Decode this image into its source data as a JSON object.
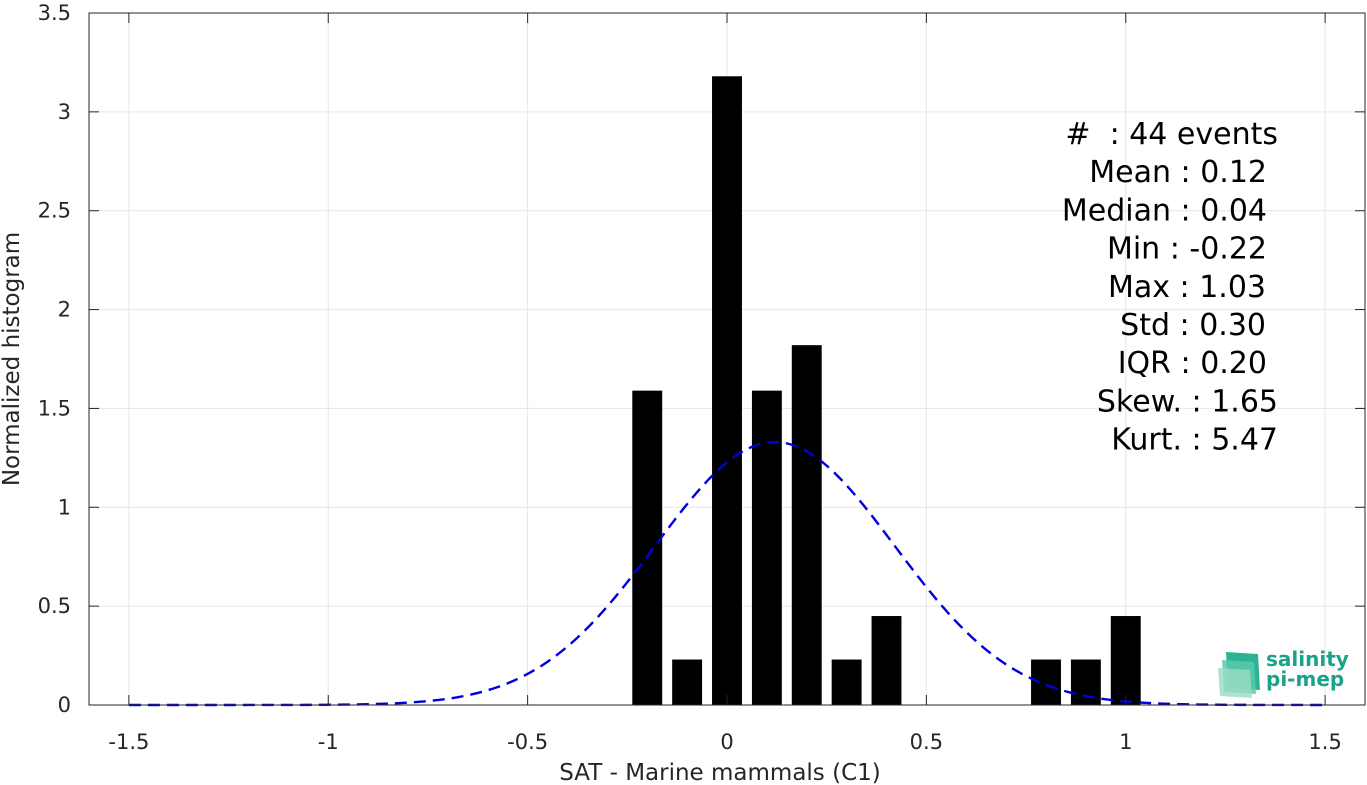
{
  "chart_data": {
    "type": "bar",
    "title": "",
    "xlabel": "SAT - Marine mammals (C1)",
    "ylabel": "Normalized histogram",
    "xlim": [
      -1.6,
      1.6
    ],
    "ylim": [
      0,
      3.5
    ],
    "grid": true,
    "x_ticks": [
      -1.5,
      -1,
      -0.5,
      0,
      0.5,
      1,
      1.5
    ],
    "x_tick_labels": [
      "-1.5",
      "-1",
      "-0.5",
      "0",
      "0.5",
      "1",
      "1.5"
    ],
    "y_ticks": [
      0,
      0.5,
      1,
      1.5,
      2,
      2.5,
      3,
      3.5
    ],
    "y_tick_labels": [
      "0",
      "0.5",
      "1",
      "1.5",
      "2",
      "2.5",
      "3",
      "3.5"
    ],
    "bar_width": 0.075,
    "bins": [
      {
        "x": -0.2,
        "value": 1.59
      },
      {
        "x": -0.1,
        "value": 0.23
      },
      {
        "x": 0.0,
        "value": 3.18
      },
      {
        "x": 0.1,
        "value": 1.59
      },
      {
        "x": 0.2,
        "value": 1.82
      },
      {
        "x": 0.3,
        "value": 0.23
      },
      {
        "x": 0.4,
        "value": 0.45
      },
      {
        "x": 0.8,
        "value": 0.23
      },
      {
        "x": 0.9,
        "value": 0.23
      },
      {
        "x": 1.0,
        "value": 0.45
      }
    ],
    "bar_color": "#000000",
    "fit_curve": {
      "style": "dashed",
      "color": "#0000dd",
      "mean": 0.12,
      "std": 0.3,
      "x_range": [
        -1.5,
        1.5
      ]
    },
    "stats": [
      "#  : 44 events",
      "Mean : 0.12",
      "Median : 0.04",
      "Min : -0.22",
      "Max : 1.03",
      "Std : 0.30",
      "IQR : 0.20",
      "Skew. : 1.65",
      "Kurt. : 5.47"
    ]
  },
  "logo": {
    "line1": "salinity",
    "line2": "pi-mep",
    "color": "#1aa389"
  }
}
